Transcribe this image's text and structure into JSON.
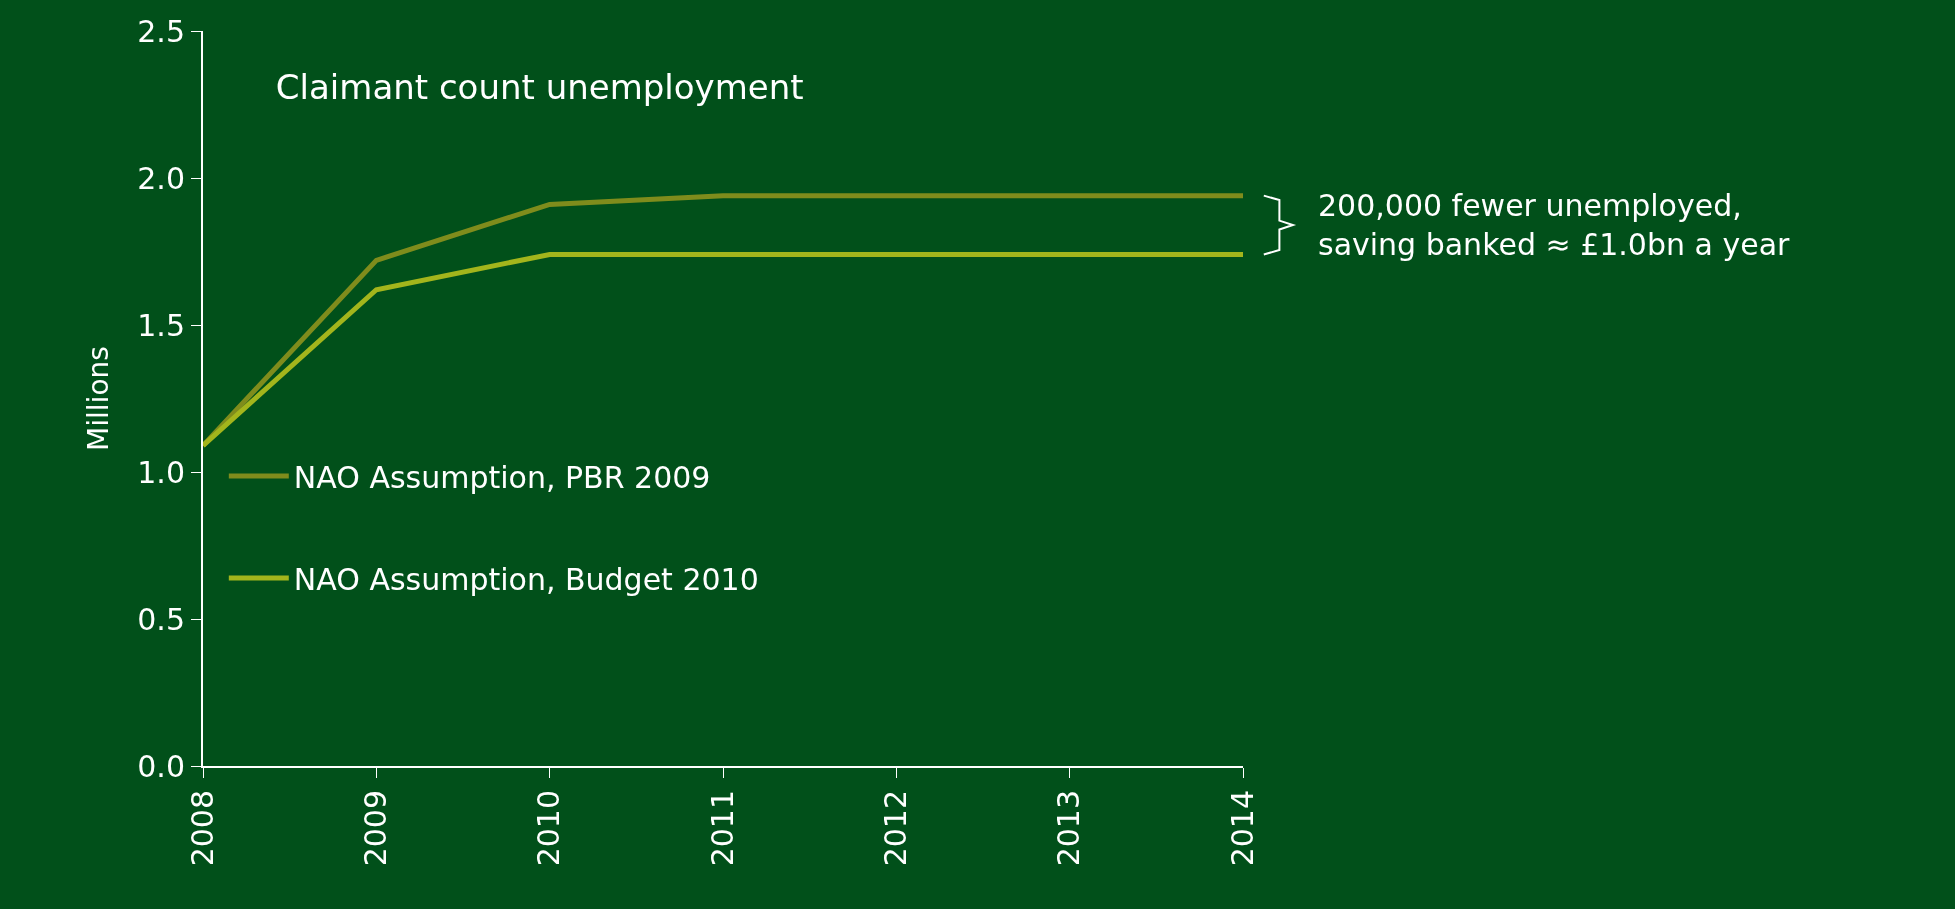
{
  "chart_data": {
    "type": "line",
    "title": "Claimant count unemployment",
    "ylabel": "Millions",
    "x": [
      2008,
      2009,
      2010,
      2011,
      2012,
      2013,
      2014
    ],
    "series": [
      {
        "name": "NAO Assumption, PBR 2009",
        "color": "#7f8c1c",
        "values": [
          1.09,
          1.72,
          1.91,
          1.94,
          1.94,
          1.94,
          1.94
        ]
      },
      {
        "name": "NAO Assumption, Budget 2010",
        "color": "#a3b51c",
        "values": [
          1.09,
          1.62,
          1.74,
          1.74,
          1.74,
          1.74,
          1.74
        ]
      }
    ],
    "xlim": [
      2008,
      2014
    ],
    "xticks": [
      2008,
      2009,
      2010,
      2011,
      2012,
      2013,
      2014
    ],
    "ylim": [
      0,
      2.5
    ],
    "yticks": [
      {
        "value": 0,
        "label": "0.0"
      },
      {
        "value": 0.5,
        "label": "0.5"
      },
      {
        "value": 1,
        "label": "1.0"
      },
      {
        "value": 1.5,
        "label": "1.5"
      },
      {
        "value": 2,
        "label": "2.0"
      },
      {
        "value": 2.5,
        "label": "2.5"
      }
    ],
    "annotations": [
      "200,000 fewer unemployed,\nsaving banked ≈ £1.0bn a year"
    ],
    "grid": false,
    "legend": "left",
    "marker": "none",
    "line_style": "solid"
  }
}
